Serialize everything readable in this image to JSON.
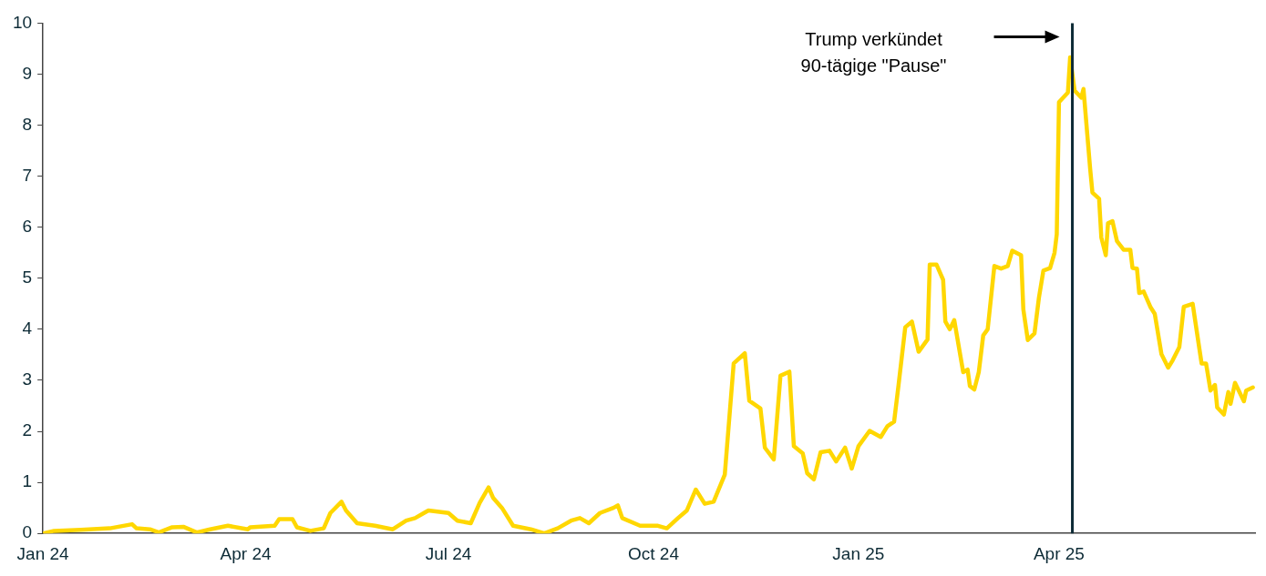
{
  "chart_data": {
    "type": "line",
    "x": [
      "2024-01-01",
      "2024-01-06",
      "2024-01-18",
      "2024-01-31",
      "2024-02-10",
      "2024-02-12",
      "2024-02-18",
      "2024-02-22",
      "2024-02-28",
      "2024-03-04",
      "2024-03-10",
      "2024-03-16",
      "2024-03-24",
      "2024-04-02",
      "2024-04-03",
      "2024-04-14",
      "2024-04-16",
      "2024-04-22",
      "2024-04-24",
      "2024-04-30",
      "2024-05-06",
      "2024-05-09",
      "2024-05-14",
      "2024-05-16",
      "2024-05-21",
      "2024-05-29",
      "2024-06-06",
      "2024-06-12",
      "2024-06-16",
      "2024-06-20",
      "2024-06-22",
      "2024-07-01",
      "2024-07-05",
      "2024-07-11",
      "2024-07-15",
      "2024-07-19",
      "2024-07-21",
      "2024-07-25",
      "2024-07-30",
      "2024-08-07",
      "2024-08-13",
      "2024-08-19",
      "2024-08-25",
      "2024-08-29",
      "2024-09-02",
      "2024-09-07",
      "2024-09-13",
      "2024-09-15",
      "2024-09-17",
      "2024-09-25",
      "2024-10-03",
      "2024-10-07",
      "2024-10-12",
      "2024-10-16",
      "2024-10-20",
      "2024-10-24",
      "2024-10-28",
      "2024-11-02",
      "2024-11-06",
      "2024-11-11",
      "2024-11-13",
      "2024-11-18",
      "2024-11-20",
      "2024-11-24",
      "2024-11-27",
      "2024-12-01",
      "2024-12-03",
      "2024-12-07",
      "2024-12-09",
      "2024-12-12",
      "2024-12-15",
      "2024-12-19",
      "2024-12-22",
      "2024-12-26",
      "2024-12-29",
      "2025-01-01",
      "2025-01-06",
      "2025-01-11",
      "2025-01-14",
      "2025-01-17",
      "2025-01-19",
      "2025-01-22",
      "2025-01-25",
      "2025-01-28",
      "2025-02-01",
      "2025-02-02",
      "2025-02-05",
      "2025-02-08",
      "2025-02-09",
      "2025-02-11",
      "2025-02-13",
      "2025-02-17",
      "2025-02-19",
      "2025-02-20",
      "2025-02-22",
      "2025-02-24",
      "2025-02-26",
      "2025-02-28",
      "2025-03-03",
      "2025-03-06",
      "2025-03-09",
      "2025-03-11",
      "2025-03-15",
      "2025-03-16",
      "2025-03-18",
      "2025-03-21",
      "2025-03-23",
      "2025-03-25",
      "2025-03-28",
      "2025-03-30",
      "2025-03-31",
      "2025-04-01",
      "2025-04-05",
      "2025-04-06",
      "2025-04-08",
      "2025-04-11",
      "2025-04-12",
      "2025-04-15",
      "2025-04-16",
      "2025-04-19",
      "2025-04-20",
      "2025-04-22",
      "2025-04-23",
      "2025-04-25",
      "2025-04-27",
      "2025-04-30",
      "2025-05-03",
      "2025-05-04",
      "2025-05-06",
      "2025-05-07",
      "2025-05-09",
      "2025-05-12",
      "2025-05-14",
      "2025-05-17",
      "2025-05-20",
      "2025-05-22",
      "2025-05-25",
      "2025-05-27",
      "2025-05-31",
      "2025-06-03",
      "2025-06-04",
      "2025-06-06",
      "2025-06-08",
      "2025-06-10",
      "2025-06-11",
      "2025-06-14",
      "2025-06-16",
      "2025-06-17",
      "2025-06-19",
      "2025-06-23",
      "2025-06-24",
      "2025-06-27"
    ],
    "series": [
      {
        "color": "#ffd700",
        "values": [
          0.0,
          0.05,
          0.07,
          0.1,
          0.18,
          0.1,
          0.08,
          0.02,
          0.12,
          0.13,
          0.02,
          0.08,
          0.15,
          0.08,
          0.12,
          0.15,
          0.28,
          0.28,
          0.12,
          0.05,
          0.1,
          0.4,
          0.62,
          0.45,
          0.2,
          0.15,
          0.08,
          0.25,
          0.3,
          0.4,
          0.45,
          0.4,
          0.25,
          0.2,
          0.6,
          0.9,
          0.7,
          0.5,
          0.15,
          0.08,
          0.0,
          0.1,
          0.25,
          0.3,
          0.2,
          0.4,
          0.5,
          0.55,
          0.3,
          0.15,
          0.15,
          0.1,
          0.3,
          0.45,
          0.86,
          0.58,
          0.62,
          1.15,
          3.33,
          3.53,
          2.6,
          2.45,
          1.68,
          1.45,
          3.09,
          3.17,
          1.71,
          1.57,
          1.18,
          1.06,
          1.59,
          1.62,
          1.41,
          1.68,
          1.27,
          1.71,
          2.01,
          1.89,
          2.1,
          2.19,
          2.91,
          4.04,
          4.15,
          3.56,
          3.8,
          5.27,
          5.27,
          4.97,
          4.15,
          4.0,
          4.18,
          3.16,
          3.21,
          2.89,
          2.82,
          3.16,
          3.88,
          4.0,
          5.24,
          5.19,
          5.24,
          5.54,
          5.45,
          4.39,
          3.79,
          3.92,
          4.62,
          5.15,
          5.2,
          5.5,
          5.86,
          8.45,
          8.64,
          9.33,
          8.68,
          8.54,
          8.71,
          7.14,
          6.68,
          6.56,
          5.8,
          5.45,
          6.08,
          6.12,
          5.73,
          5.56,
          5.56,
          5.2,
          5.19,
          4.71,
          4.74,
          4.44,
          4.3,
          3.51,
          3.25,
          3.39,
          3.65,
          4.44,
          4.5,
          3.62,
          3.33,
          3.33,
          2.8,
          2.91,
          2.47,
          2.33,
          2.77,
          2.54,
          2.95,
          2.59,
          2.8,
          2.86
        ]
      }
    ],
    "xlim": [
      "2024-01-01",
      "2025-06-28"
    ],
    "xticks": [
      {
        "value": "2024-01-01",
        "label": "Jan 24"
      },
      {
        "value": "2024-04-01",
        "label": "Apr 24"
      },
      {
        "value": "2024-07-01",
        "label": "Jul 24"
      },
      {
        "value": "2024-10-01",
        "label": "Oct 24"
      },
      {
        "value": "2025-01-01",
        "label": "Jan 25"
      },
      {
        "value": "2025-04-01",
        "label": "Apr 25"
      }
    ],
    "ylim": [
      0,
      10
    ],
    "yticks": [
      0,
      1,
      2,
      3,
      4,
      5,
      6,
      7,
      8,
      9,
      10
    ],
    "ref_lines": [
      {
        "axis": "x",
        "value": "2025-04-07",
        "color": "#0d2b36"
      }
    ],
    "annotations": [
      "Trump verkündet\n90-tägige \"Pause\""
    ],
    "grid": false,
    "legend": false,
    "marker": "none",
    "line_style": "solid"
  }
}
